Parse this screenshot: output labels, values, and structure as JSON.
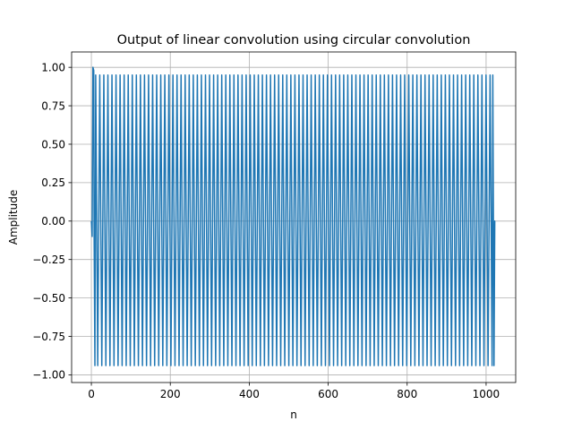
{
  "chart_data": {
    "type": "line",
    "title": "Output of linear convolution using circular convolution",
    "xlabel": "n",
    "ylabel": "Amplitude",
    "xlim": [
      -50,
      1075
    ],
    "ylim": [
      -1.05,
      1.1
    ],
    "xticks": [
      0,
      200,
      400,
      600,
      800,
      1000
    ],
    "yticks": [
      -1.0,
      -0.75,
      -0.5,
      -0.25,
      0.0,
      0.25,
      0.5,
      0.75,
      1.0
    ],
    "xtick_labels": [
      "0",
      "200",
      "400",
      "600",
      "800",
      "1000"
    ],
    "ytick_labels": [
      "−1.00",
      "−0.75",
      "−0.50",
      "−0.25",
      "0.00",
      "0.25",
      "0.50",
      "0.75",
      "1.00"
    ],
    "grid": true,
    "series": [
      {
        "color": "#1f77b4",
        "segments": [
          {
            "kind": "points",
            "x": [
              0,
              2,
              4,
              6,
              7,
              9,
              11
            ],
            "y": [
              0.0,
              -0.1,
              1.0,
              0.98,
              -0.1,
              -0.94,
              0.95
            ]
          },
          {
            "kind": "oscillation",
            "x_start": 11,
            "x_end": 1017,
            "period": 10.3,
            "y_max": 0.95,
            "y_min": -0.94
          },
          {
            "kind": "points",
            "x": [
              1017,
              1020,
              1022,
              1023
            ],
            "y": [
              0.95,
              -0.94,
              0.0,
              0.0
            ]
          }
        ]
      }
    ]
  }
}
